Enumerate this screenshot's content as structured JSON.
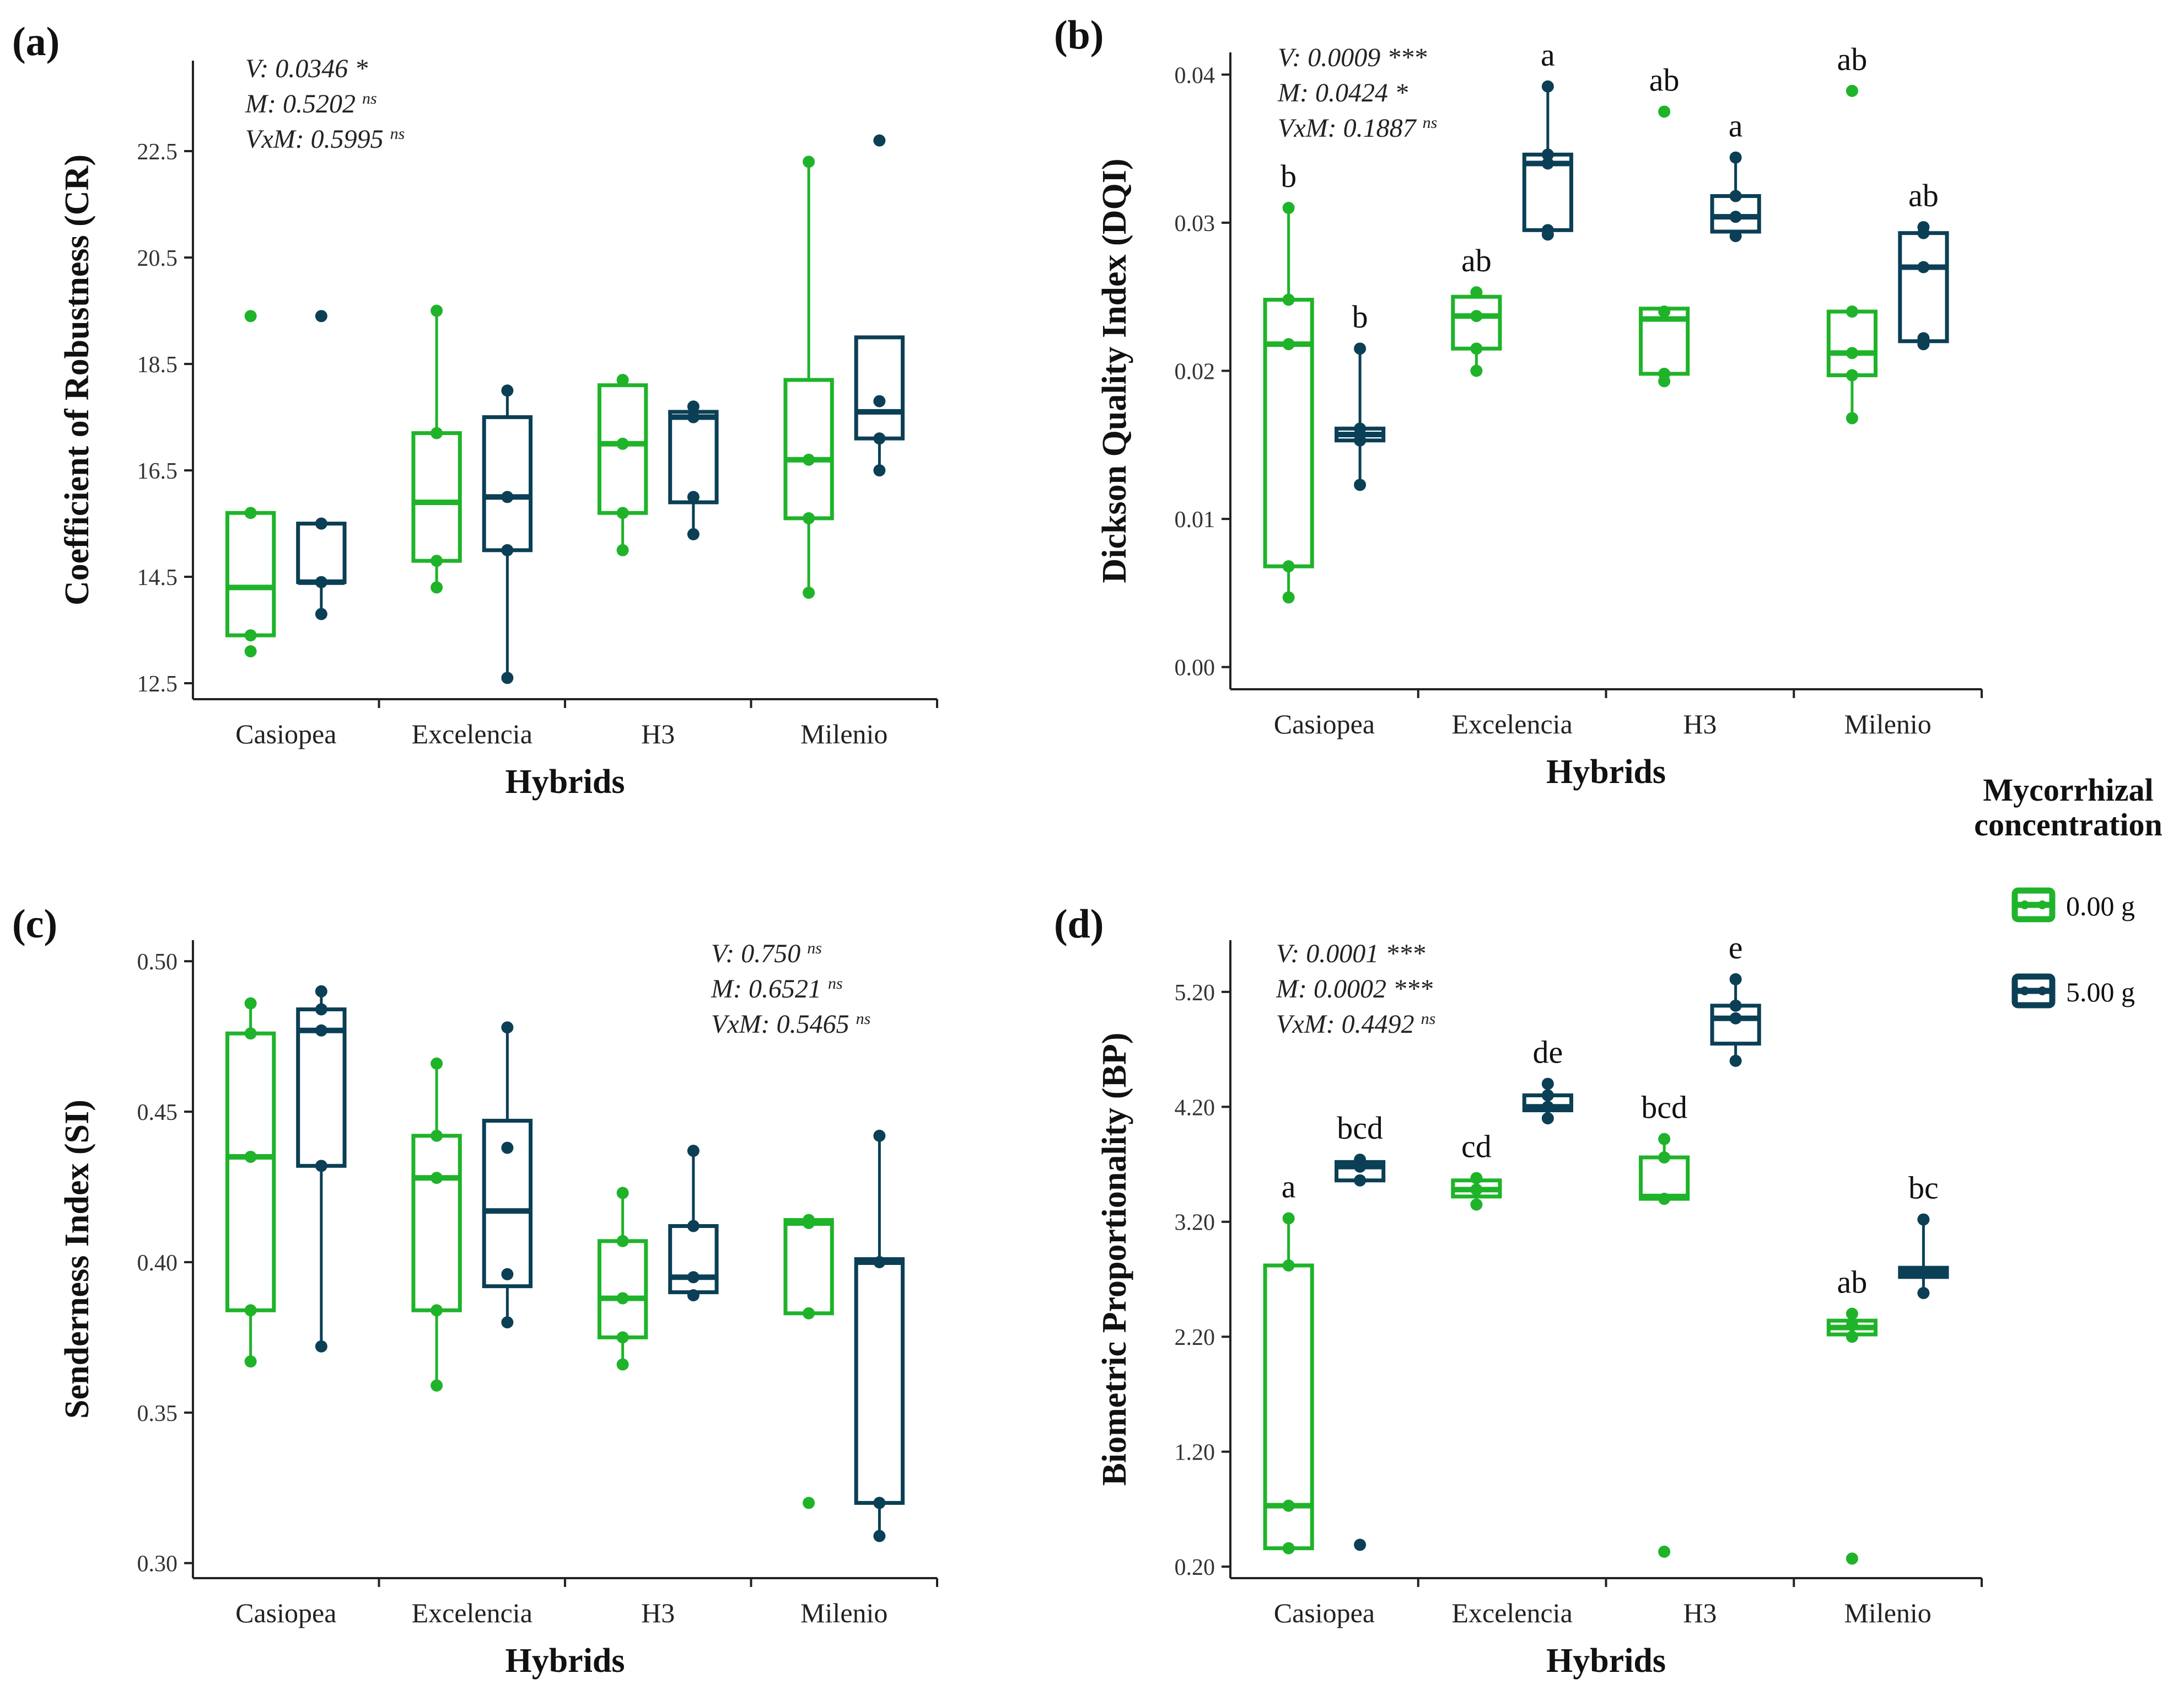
{
  "legend": {
    "title_line1": "Mycorrhizal",
    "title_line2": "concentration",
    "items": [
      "0.00 g",
      "5.00 g"
    ],
    "colors": [
      "#1fb32a",
      "#0b3f55"
    ]
  },
  "chart_data": [
    {
      "id": "a",
      "type": "box",
      "panel_label": "(a)",
      "ylabel": "Coefficient of Robustness (CR)",
      "xlabel": "Hybrids",
      "categories": [
        "Casiopea",
        "Excelencia",
        "H3",
        "Milenio"
      ],
      "ylim": [
        12.2,
        24.2
      ],
      "yticks": [
        "12.5",
        "14.5",
        "16.5",
        "18.5",
        "20.5",
        "22.5"
      ],
      "stats": [
        "V: 0.0346 *",
        "M: 0.5202 ns",
        "VxM: 0.5995 ns"
      ],
      "series": [
        {
          "name": "0.00 g",
          "boxes": [
            {
              "q1": 13.4,
              "median": 14.3,
              "q3": 15.7,
              "wlo": 13.4,
              "whi": 15.7,
              "points": [
                13.1,
                13.4,
                15.7,
                19.4
              ]
            },
            {
              "q1": 14.8,
              "median": 15.9,
              "q3": 17.2,
              "wlo": 14.3,
              "whi": 19.5,
              "points": [
                14.3,
                14.8,
                17.2,
                19.5
              ]
            },
            {
              "q1": 15.7,
              "median": 17.0,
              "q3": 18.1,
              "wlo": 15.0,
              "whi": 18.2,
              "points": [
                15.0,
                15.7,
                17.0,
                18.2
              ]
            },
            {
              "q1": 15.6,
              "median": 16.7,
              "q3": 18.2,
              "wlo": 14.2,
              "whi": 22.3,
              "points": [
                14.2,
                15.6,
                16.7,
                22.3
              ]
            }
          ],
          "labels": []
        },
        {
          "name": "5.00 g",
          "boxes": [
            {
              "q1": 14.4,
              "median": 14.4,
              "q3": 15.5,
              "wlo": 13.8,
              "whi": 15.5,
              "points": [
                13.8,
                14.4,
                15.5,
                19.4
              ]
            },
            {
              "q1": 15.0,
              "median": 16.0,
              "q3": 17.5,
              "wlo": 12.6,
              "whi": 18.0,
              "points": [
                12.6,
                15.0,
                16.0,
                18.0
              ]
            },
            {
              "q1": 15.9,
              "median": 17.5,
              "q3": 17.6,
              "wlo": 15.3,
              "whi": 17.6,
              "points": [
                15.3,
                16.0,
                17.5,
                17.7
              ]
            },
            {
              "q1": 17.1,
              "median": 17.6,
              "q3": 19.0,
              "wlo": 16.5,
              "whi": 19.0,
              "points": [
                16.5,
                17.1,
                17.8,
                22.7
              ]
            }
          ],
          "labels": []
        }
      ]
    },
    {
      "id": "b",
      "type": "box",
      "panel_label": "(b)",
      "ylabel": "Dickson Quality Index (DQI)",
      "xlabel": "Hybrids",
      "categories": [
        "Casiopea",
        "Excelencia",
        "H3",
        "Milenio"
      ],
      "ylim": [
        -0.0015,
        0.0415
      ],
      "yticks": [
        "0.00",
        "0.01",
        "0.02",
        "0.03",
        "0.04"
      ],
      "stats": [
        "V: 0.0009 ***",
        "M: 0.0424 *",
        "VxM: 0.1887 ns"
      ],
      "series": [
        {
          "name": "0.00 g",
          "boxes": [
            {
              "q1": 0.0068,
              "median": 0.0218,
              "q3": 0.0248,
              "wlo": 0.0047,
              "whi": 0.031,
              "points": [
                0.0047,
                0.0068,
                0.0218,
                0.0248,
                0.031
              ]
            },
            {
              "q1": 0.0215,
              "median": 0.0237,
              "q3": 0.025,
              "wlo": 0.02,
              "whi": 0.0253,
              "points": [
                0.02,
                0.0215,
                0.0237,
                0.0253
              ]
            },
            {
              "q1": 0.0198,
              "median": 0.0235,
              "q3": 0.0242,
              "wlo": 0.0193,
              "whi": 0.0242,
              "points": [
                0.0193,
                0.0198,
                0.024,
                0.0375
              ]
            },
            {
              "q1": 0.0197,
              "median": 0.0212,
              "q3": 0.024,
              "wlo": 0.0168,
              "whi": 0.024,
              "points": [
                0.0168,
                0.0197,
                0.0212,
                0.024,
                0.0389
              ]
            }
          ],
          "labels": [
            "b",
            "ab",
            "ab",
            "ab"
          ]
        },
        {
          "name": "5.00 g",
          "boxes": [
            {
              "q1": 0.0153,
              "median": 0.0157,
              "q3": 0.0161,
              "wlo": 0.0123,
              "whi": 0.0215,
              "points": [
                0.0123,
                0.0153,
                0.0161,
                0.0215
              ]
            },
            {
              "q1": 0.0295,
              "median": 0.034,
              "q3": 0.0346,
              "wlo": 0.0292,
              "whi": 0.0392,
              "points": [
                0.0292,
                0.0295,
                0.034,
                0.0346,
                0.0392
              ]
            },
            {
              "q1": 0.0294,
              "median": 0.0304,
              "q3": 0.0318,
              "wlo": 0.0291,
              "whi": 0.0344,
              "points": [
                0.0291,
                0.0304,
                0.0318,
                0.0344
              ]
            },
            {
              "q1": 0.022,
              "median": 0.027,
              "q3": 0.0293,
              "wlo": 0.0218,
              "whi": 0.0297,
              "points": [
                0.0218,
                0.0222,
                0.027,
                0.0293,
                0.0297
              ]
            }
          ],
          "labels": [
            "b",
            "a",
            "a",
            "ab"
          ]
        }
      ]
    },
    {
      "id": "c",
      "type": "box",
      "panel_label": "(c)",
      "ylabel": "Senderness Index (SI)",
      "xlabel": "Hybrids",
      "categories": [
        "Casiopea",
        "Excelencia",
        "H3",
        "Milenio"
      ],
      "ylim": [
        0.295,
        0.507
      ],
      "yticks": [
        "0.30",
        "0.35",
        "0.40",
        "0.45",
        "0.50"
      ],
      "stats": [
        "V: 0.750 ns",
        "M: 0.6521 ns",
        "VxM: 0.5465 ns"
      ],
      "series": [
        {
          "name": "0.00 g",
          "boxes": [
            {
              "q1": 0.384,
              "median": 0.435,
              "q3": 0.476,
              "wlo": 0.367,
              "whi": 0.486,
              "points": [
                0.367,
                0.384,
                0.435,
                0.476,
                0.486
              ]
            },
            {
              "q1": 0.384,
              "median": 0.428,
              "q3": 0.442,
              "wlo": 0.359,
              "whi": 0.466,
              "points": [
                0.359,
                0.384,
                0.428,
                0.442,
                0.466
              ]
            },
            {
              "q1": 0.375,
              "median": 0.388,
              "q3": 0.407,
              "wlo": 0.366,
              "whi": 0.423,
              "points": [
                0.366,
                0.375,
                0.388,
                0.407,
                0.423
              ]
            },
            {
              "q1": 0.383,
              "median": 0.413,
              "q3": 0.414,
              "wlo": 0.383,
              "whi": 0.414,
              "points": [
                0.32,
                0.383,
                0.413,
                0.414
              ]
            }
          ],
          "labels": []
        },
        {
          "name": "5.00 g",
          "boxes": [
            {
              "q1": 0.432,
              "median": 0.477,
              "q3": 0.484,
              "wlo": 0.372,
              "whi": 0.49,
              "points": [
                0.372,
                0.432,
                0.477,
                0.484,
                0.49
              ]
            },
            {
              "q1": 0.392,
              "median": 0.417,
              "q3": 0.447,
              "wlo": 0.38,
              "whi": 0.478,
              "points": [
                0.38,
                0.396,
                0.438,
                0.478
              ]
            },
            {
              "q1": 0.39,
              "median": 0.395,
              "q3": 0.412,
              "wlo": 0.389,
              "whi": 0.437,
              "points": [
                0.389,
                0.395,
                0.412,
                0.437
              ]
            },
            {
              "q1": 0.32,
              "median": 0.4,
              "q3": 0.401,
              "wlo": 0.309,
              "whi": 0.442,
              "points": [
                0.309,
                0.32,
                0.4,
                0.442
              ]
            }
          ],
          "labels": []
        }
      ]
    },
    {
      "id": "d",
      "type": "box",
      "panel_label": "(d)",
      "ylabel": "Biometric Proportionality (BP)",
      "xlabel": "Hybrids",
      "categories": [
        "Casiopea",
        "Excelencia",
        "H3",
        "Milenio"
      ],
      "ylim": [
        0.1,
        5.65
      ],
      "yticks": [
        "0.20",
        "1.20",
        "2.20",
        "3.20",
        "4.20",
        "5.20"
      ],
      "stats": [
        "V: 0.0001 ***",
        "M: 0.0002 ***",
        "VxM: 0.4492 ns"
      ],
      "series": [
        {
          "name": "0.00 g",
          "boxes": [
            {
              "q1": 0.36,
              "median": 0.73,
              "q3": 2.82,
              "wlo": 0.36,
              "whi": 3.23,
              "points": [
                0.36,
                0.73,
                2.82,
                3.23
              ]
            },
            {
              "q1": 3.42,
              "median": 3.48,
              "q3": 3.56,
              "wlo": 3.35,
              "whi": 3.58,
              "points": [
                3.35,
                3.48,
                3.58
              ]
            },
            {
              "q1": 3.4,
              "median": 3.42,
              "q3": 3.76,
              "wlo": 3.4,
              "whi": 3.92,
              "points": [
                0.33,
                3.4,
                3.76,
                3.92
              ]
            },
            {
              "q1": 2.22,
              "median": 2.28,
              "q3": 2.34,
              "wlo": 2.2,
              "whi": 2.4,
              "points": [
                0.27,
                2.2,
                2.3,
                2.4
              ]
            }
          ],
          "labels": [
            "a",
            "cd",
            "bcd",
            "ab"
          ]
        },
        {
          "name": "5.00 g",
          "boxes": [
            {
              "q1": 3.56,
              "median": 3.68,
              "q3": 3.72,
              "wlo": 3.56,
              "whi": 3.74,
              "points": [
                0.39,
                3.56,
                3.68,
                3.74
              ]
            },
            {
              "q1": 4.17,
              "median": 4.2,
              "q3": 4.3,
              "wlo": 4.1,
              "whi": 4.4,
              "points": [
                4.1,
                4.2,
                4.3,
                4.4
              ]
            },
            {
              "q1": 4.75,
              "median": 4.97,
              "q3": 5.08,
              "wlo": 4.6,
              "whi": 5.31,
              "points": [
                4.6,
                4.97,
                5.08,
                5.31
              ]
            },
            {
              "q1": 2.72,
              "median": 2.76,
              "q3": 2.8,
              "wlo": 2.58,
              "whi": 3.22,
              "points": [
                2.58,
                2.76,
                3.22
              ]
            }
          ],
          "labels": [
            "bcd",
            "de",
            "e",
            "bc"
          ]
        }
      ]
    }
  ]
}
